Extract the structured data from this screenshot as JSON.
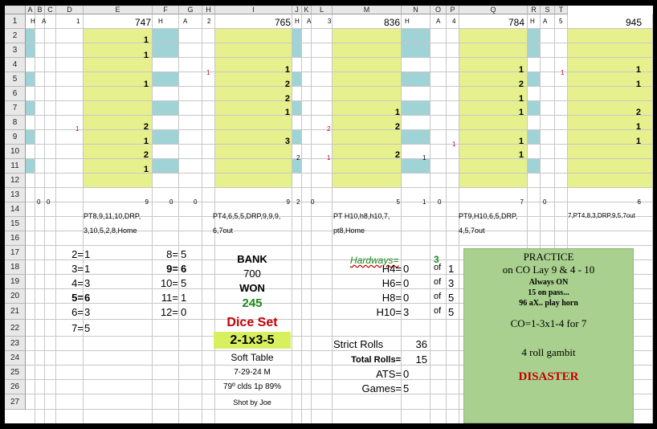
{
  "colors": {
    "yellow": "#e6f08c",
    "teal": "#9fd3d6",
    "green_box": "#a9d08e",
    "lime": "#d8f060"
  },
  "columns": [
    "A",
    "B",
    "C",
    "D",
    "E",
    "F",
    "G",
    "H",
    "I",
    "J",
    "K",
    "L",
    "M",
    "N",
    "O",
    "P",
    "Q",
    "R",
    "S",
    "T"
  ],
  "rows": [
    "1",
    "2",
    "3",
    "4",
    "5",
    "6",
    "7",
    "8",
    "9",
    "10",
    "11",
    "12",
    "13",
    "14",
    "15",
    "16",
    "17",
    "18",
    "19",
    "20",
    "21",
    "22",
    "23",
    "24",
    "25",
    "26",
    "27"
  ],
  "header_row": {
    "h": "H",
    "a": "A",
    "g1": "1",
    "v1": "747",
    "g2": "2",
    "v2": "765",
    "g3": "3",
    "v3": "836",
    "g4": "4",
    "v4": "784",
    "g5": "5",
    "v5": "945"
  },
  "grid": {
    "d2": "1",
    "d3": "1",
    "d5": "1",
    "d8": "2",
    "d9": "1",
    "d10": "2",
    "d11": "1",
    "c8": "1",
    "g4": "1",
    "h4": "1",
    "h5": "2",
    "h6": "2",
    "h7": "1",
    "h9": "3",
    "i10": "2",
    "k8": "2",
    "k10": "1",
    "l7": "1",
    "l8": "2",
    "l10": "2",
    "m10": "1",
    "o9": "1",
    "p4": "1",
    "p5": "2",
    "p6": "1",
    "p7": "1",
    "p9": "1",
    "p10": "1",
    "s4": "1",
    "t4": "1",
    "t5": "1",
    "t7": "2",
    "t8": "1",
    "t9": "1"
  },
  "row13": {
    "a": "0",
    "b": "0",
    "d": "9",
    "e": "0",
    "f": "0",
    "h": "9",
    "i": "2",
    "j": "0",
    "l": "5",
    "m": "1",
    "n": "0",
    "p": "7",
    "q": "0",
    "t": "6"
  },
  "notes": {
    "n1a": "PT8,9,11,10,DRP,",
    "n1b": "3,10,5,2,8,Home",
    "n2a": "PT4,6,5,5,DRP,9,9,9,",
    "n2b": "6,7out",
    "n3a": "PT H10,h8,h10,7,",
    "n3b": "pt8,Home",
    "n4a": "PT9,H10,6,5,DRP,",
    "n4b": "4,5,7out",
    "n5a": "7,PT4,8,3,DRP,9,5,7out"
  },
  "left_counts": [
    {
      "k": "2=",
      "v": "1"
    },
    {
      "k": "3=",
      "v": "1"
    },
    {
      "k": "4=",
      "v": "3"
    },
    {
      "k": "5=",
      "v": "6"
    },
    {
      "k": "6=",
      "v": "3"
    },
    {
      "k": "7=",
      "v": "5"
    }
  ],
  "mid_counts": [
    {
      "k": "8=",
      "v": "5"
    },
    {
      "k": "9=",
      "v": "6"
    },
    {
      "k": "10=",
      "v": "5"
    },
    {
      "k": "11=",
      "v": "1"
    },
    {
      "k": "12=",
      "v": "0"
    }
  ],
  "bank": {
    "label": "BANK",
    "amount": "700",
    "won_label": "WON",
    "won": "245",
    "dice_set_label": "Dice Set",
    "dice_set": "2-1x3-5",
    "table": "Soft Table",
    "date": "7-29-24 M",
    "weather": "79º clds 1p 89%",
    "shooter": "Shot by Joe"
  },
  "hardways": {
    "label": "Hardways=",
    "value": "3",
    "rows": [
      {
        "k": "H4=",
        "v": "0",
        "of": "of",
        "n": "1"
      },
      {
        "k": "H6=",
        "v": "0",
        "of": "of",
        "n": "3"
      },
      {
        "k": "H8=",
        "v": "0",
        "of": "of",
        "n": "5"
      },
      {
        "k": "H10=",
        "v": "3",
        "of": "of",
        "n": "5"
      }
    ]
  },
  "stats": {
    "strict_label": "Strict Rolls",
    "strict": "36",
    "total_label": "Total Rolls=",
    "total": "15",
    "ats_label": "ATS=",
    "ats": "0",
    "games_label": "Games=",
    "games": "5"
  },
  "practice": {
    "l1": "PRACTICE",
    "l2": "on CO Lay 9 & 4 - 10",
    "l3": "Always ON",
    "l4": "15 on pass...",
    "l5": "96 aX.. play horn",
    "l6": "CO=1-3x1-4 for 7",
    "l7": "4 roll gambit",
    "l8": "DISASTER"
  }
}
